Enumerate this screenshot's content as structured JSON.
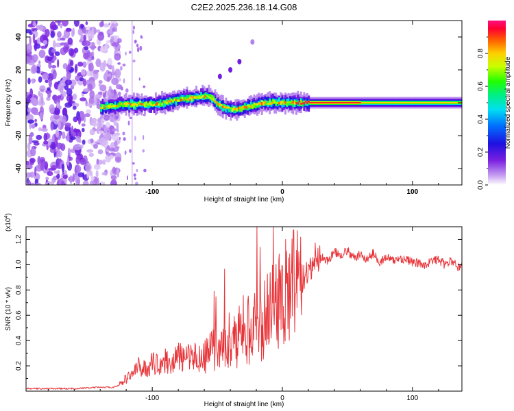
{
  "chart_data": [
    {
      "type": "heatmap",
      "title": "C2E2.2025.236.18.14.G08",
      "xlabel": "Height of straight line (km)",
      "ylabel": "Frequency (Hz)",
      "xlim": [
        -197,
        138
      ],
      "ylim": [
        -50,
        50
      ],
      "xticks": [
        -100,
        0,
        100
      ],
      "yticks": [
        -40,
        -20,
        0,
        20,
        40
      ],
      "colorbar": {
        "label": "Normalized spectral amplitude",
        "range": [
          0,
          1
        ],
        "ticks": [
          0.0,
          0.2,
          0.4,
          0.6,
          0.8
        ]
      },
      "ridge": {
        "description": "dominant Doppler frequency vs height",
        "x": [
          -140,
          -130,
          -120,
          -110,
          -100,
          -90,
          -80,
          -70,
          -60,
          -55,
          -50,
          -45,
          -40,
          -35,
          -30,
          -25,
          -20,
          -15,
          -10,
          -5,
          0,
          10,
          20,
          40,
          60,
          80,
          100,
          120,
          138
        ],
        "y": [
          -3,
          -2,
          -1,
          -1,
          -1,
          0,
          2,
          3,
          4,
          3,
          -1,
          -3,
          -4,
          -4,
          -3,
          -2,
          -1,
          0,
          0,
          0,
          0,
          0,
          0,
          0,
          0,
          0,
          0,
          0,
          0
        ]
      },
      "streak": {
        "x": [
          -48,
          -40,
          -33,
          -23
        ],
        "y": [
          16,
          20,
          25,
          37
        ]
      },
      "noise_region": {
        "x_range": [
          -197,
          -135
        ],
        "y_range": [
          -50,
          50
        ]
      }
    },
    {
      "type": "line",
      "title": "",
      "xlabel": "Height of straight line (km)",
      "ylabel": "SNR (10 * v/v)",
      "y_exponent_label": "(x10",
      "y_exponent": "4",
      "xlim": [
        -197,
        138
      ],
      "ylim": [
        0,
        1.3
      ],
      "xticks": [
        -100,
        0,
        100
      ],
      "yticks": [
        0.2,
        0.4,
        0.6,
        0.8,
        1.0,
        1.2
      ],
      "color": "#e8353a",
      "series": [
        {
          "name": "SNR",
          "x": [
            -197,
            -180,
            -160,
            -140,
            -130,
            -125,
            -120,
            -115,
            -110,
            -105,
            -100,
            -95,
            -90,
            -85,
            -80,
            -75,
            -70,
            -65,
            -60,
            -55,
            -50,
            -45,
            -40,
            -35,
            -30,
            -25,
            -20,
            -15,
            -10,
            -5,
            0,
            5,
            10,
            15,
            20,
            25,
            30,
            35,
            40,
            45,
            50,
            55,
            60,
            65,
            70,
            75,
            80,
            85,
            90,
            95,
            100,
            105,
            110,
            115,
            120,
            125,
            130,
            135,
            138
          ],
          "y": [
            0.02,
            0.02,
            0.02,
            0.03,
            0.03,
            0.05,
            0.09,
            0.13,
            0.18,
            0.16,
            0.2,
            0.2,
            0.22,
            0.2,
            0.26,
            0.22,
            0.28,
            0.23,
            0.27,
            0.32,
            0.36,
            0.38,
            0.42,
            0.4,
            0.5,
            0.45,
            0.55,
            0.52,
            0.68,
            0.72,
            0.75,
            0.8,
            0.85,
            0.88,
            0.9,
            1.05,
            1.06,
            1.03,
            1.1,
            1.08,
            1.11,
            1.05,
            1.08,
            1.04,
            1.09,
            1.02,
            1.06,
            1.03,
            1.05,
            1.04,
            1.02,
            1.01,
            1.0,
            1.03,
            1.04,
            1.0,
            1.03,
            0.98,
            1.0
          ]
        }
      ]
    }
  ]
}
